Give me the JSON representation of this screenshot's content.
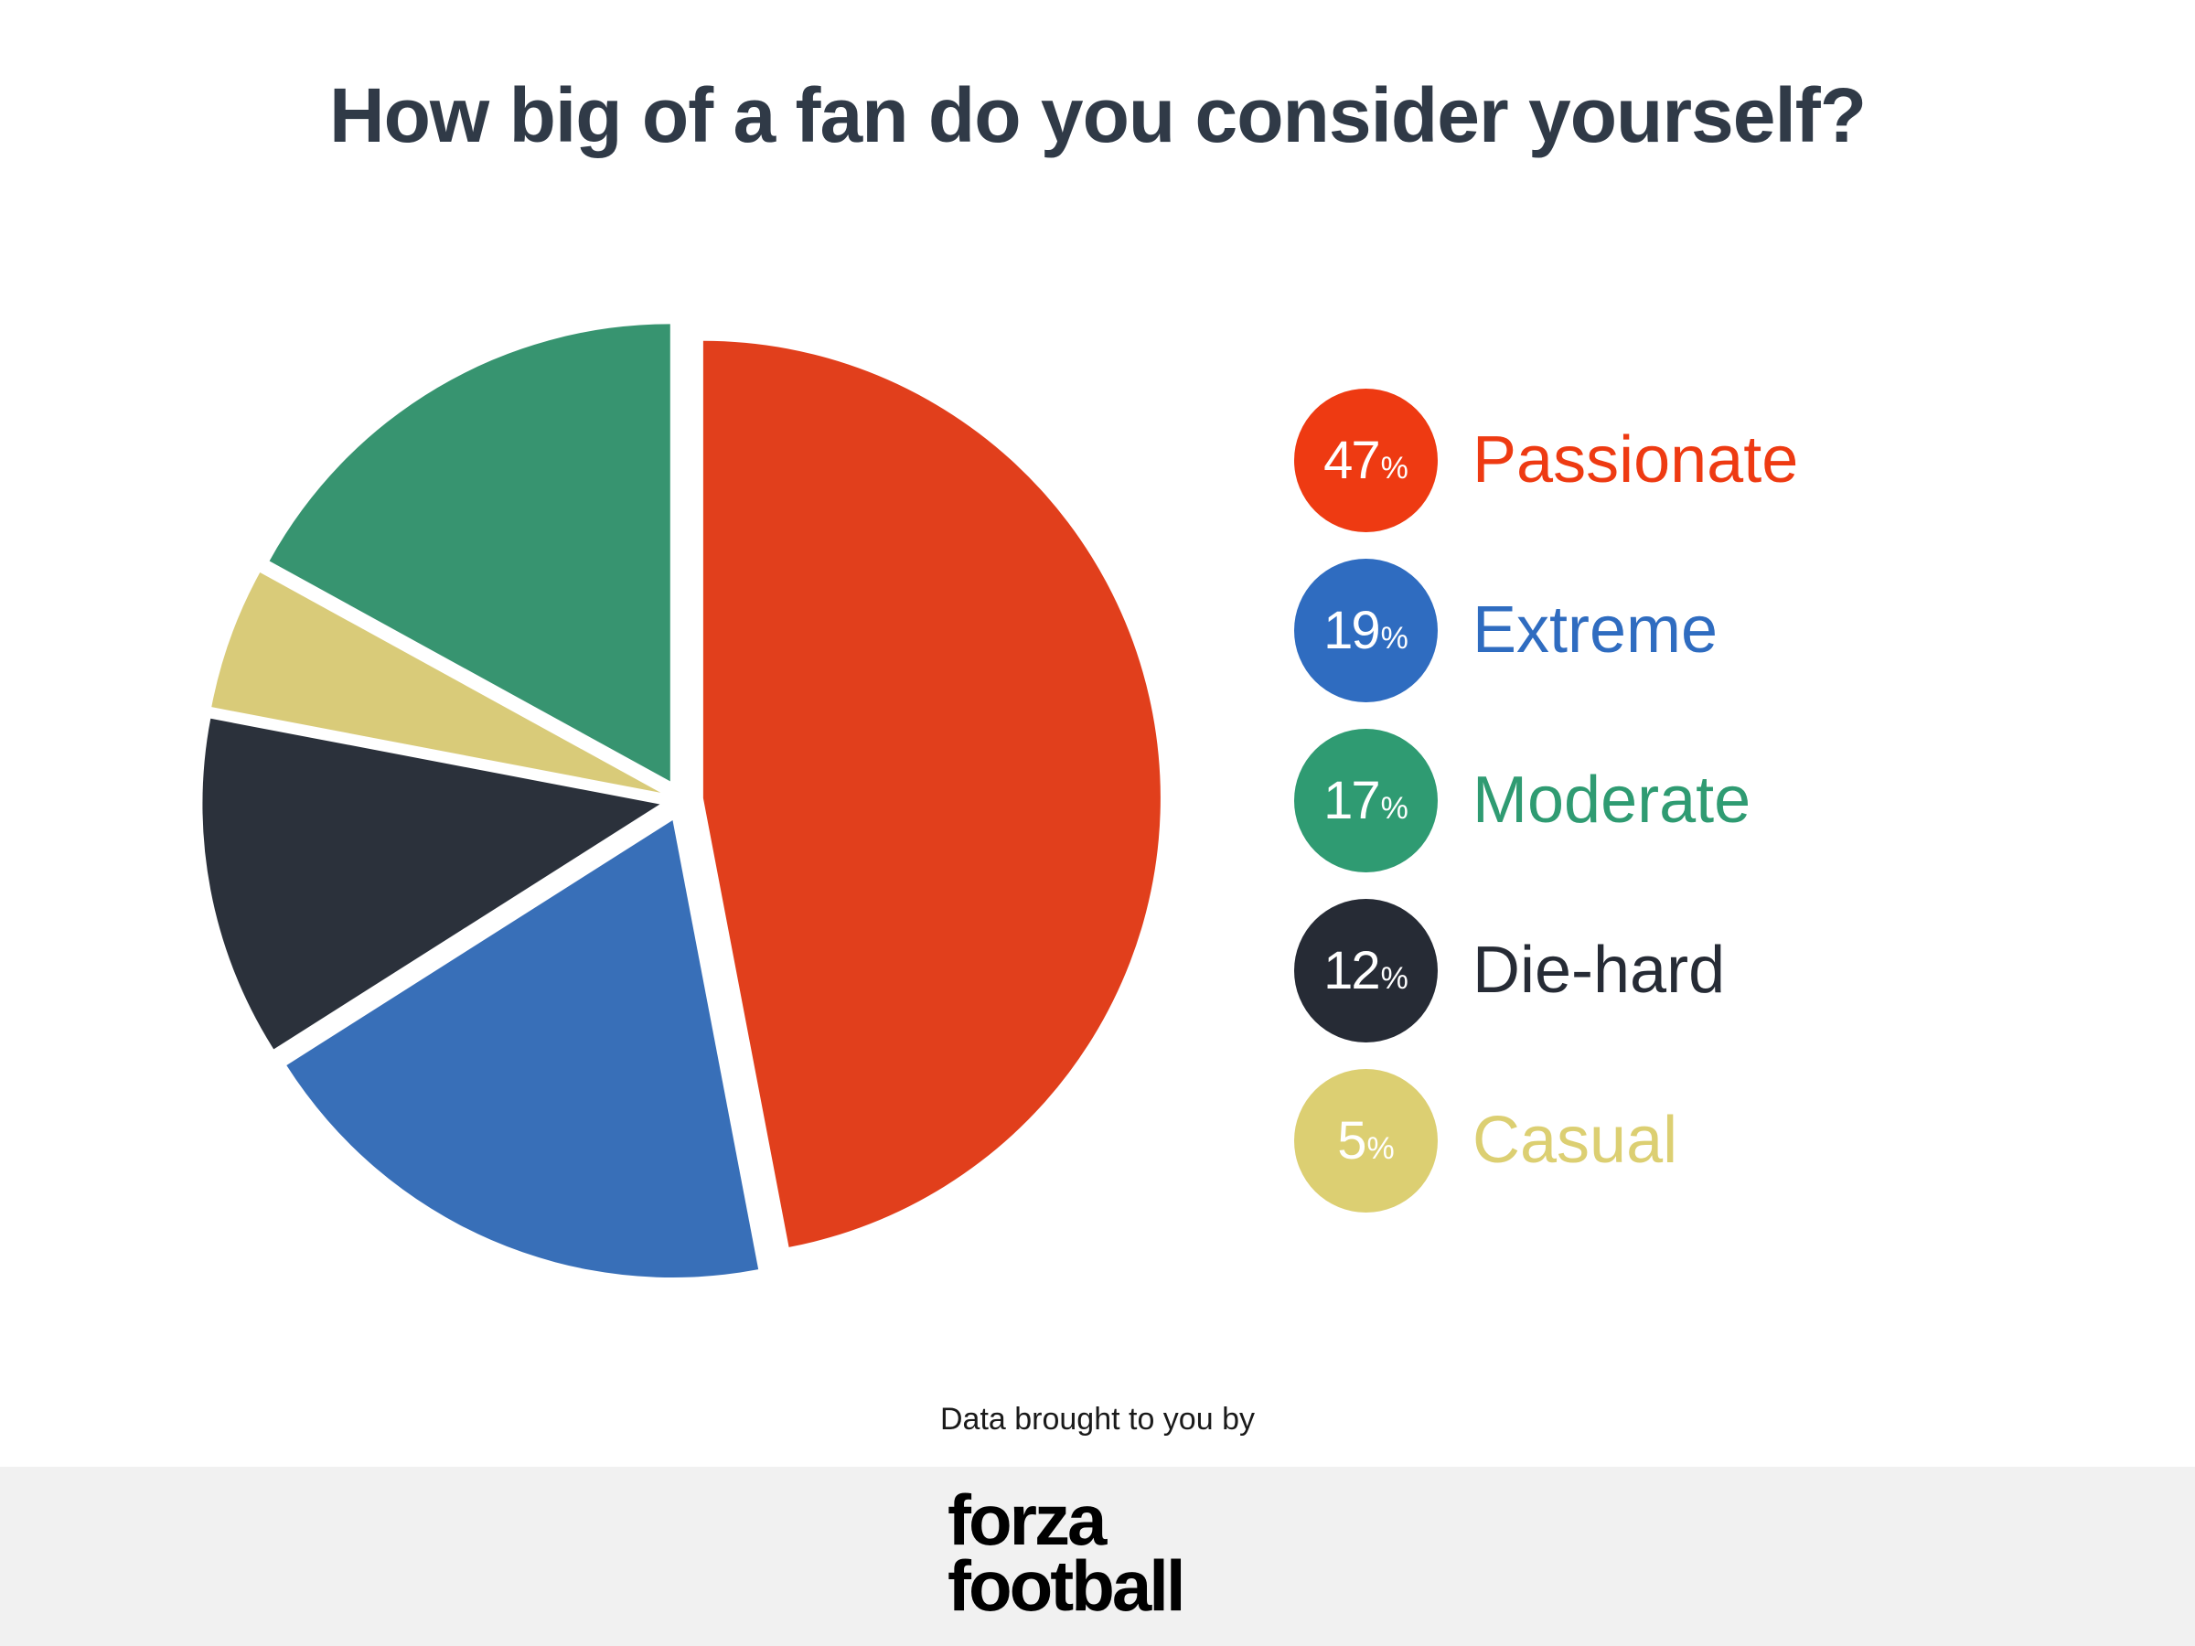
{
  "chart_data": {
    "type": "pie",
    "title": "How big of a fan do you consider yourself?",
    "categories": [
      "Passionate",
      "Extreme",
      "Moderate",
      "Die-hard",
      "Casual"
    ],
    "values": [
      47,
      19,
      17,
      12,
      5
    ],
    "unit": "%",
    "colors": [
      "#e13f1c",
      "#386fb8",
      "#379470",
      "#2b313b",
      "#d9cb79"
    ],
    "legend_colors": [
      "#ee3a12",
      "#2f6cc0",
      "#2f9b72",
      "#262b35",
      "#dccf72"
    ],
    "legend_placement": "right",
    "slice_order": [
      "Passionate",
      "Extreme",
      "Die-hard",
      "Casual",
      "Moderate"
    ],
    "legend": [
      {
        "value": "47",
        "unit": "%",
        "label": "Passionate"
      },
      {
        "value": "19",
        "unit": "%",
        "label": "Extreme"
      },
      {
        "value": "17",
        "unit": "%",
        "label": "Moderate"
      },
      {
        "value": "12",
        "unit": "%",
        "label": "Die-hard"
      },
      {
        "value": "5",
        "unit": "%",
        "label": "Casual"
      }
    ]
  },
  "footer": {
    "credit": "Data brought to you by",
    "logo_line1": "forza",
    "logo_line2": "football"
  }
}
